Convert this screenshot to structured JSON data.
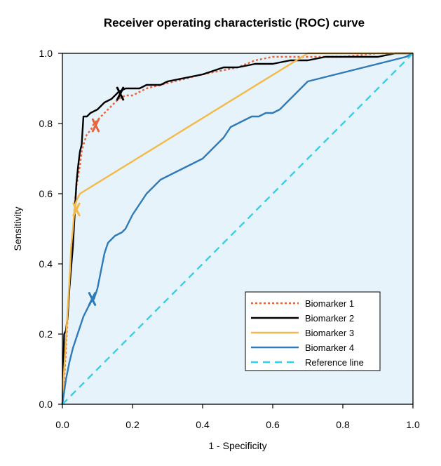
{
  "chart_data": {
    "type": "line",
    "title": "Receiver operating characteristic (ROC) curve",
    "xlabel": "1 - Specificity",
    "ylabel": "Sensitivity",
    "xlim": [
      0,
      1
    ],
    "ylim": [
      0,
      1
    ],
    "xticks": [
      "0.0",
      "0.2",
      "0.4",
      "0.6",
      "0.8",
      "1.0"
    ],
    "yticks": [
      "0.0",
      "0.2",
      "0.4",
      "0.6",
      "0.8",
      "1.0"
    ],
    "grid": false,
    "legend_position": "bottom-right",
    "plot_background": "#e6f3fa",
    "series": [
      {
        "name": "Biomarker 1",
        "color": "#e8643c",
        "style": "dotted",
        "x": [
          0,
          0.005,
          0.01,
          0.015,
          0.02,
          0.025,
          0.03,
          0.035,
          0.04,
          0.05,
          0.055,
          0.06,
          0.07,
          0.08,
          0.09,
          0.1,
          0.12,
          0.14,
          0.16,
          0.18,
          0.2,
          0.24,
          0.28,
          0.32,
          0.36,
          0.4,
          0.45,
          0.5,
          0.55,
          0.6,
          0.65,
          0.7,
          0.8,
          0.9,
          1.0
        ],
        "y": [
          0,
          0.07,
          0.15,
          0.25,
          0.33,
          0.4,
          0.48,
          0.57,
          0.62,
          0.68,
          0.72,
          0.74,
          0.77,
          0.78,
          0.8,
          0.81,
          0.83,
          0.85,
          0.87,
          0.88,
          0.88,
          0.9,
          0.91,
          0.92,
          0.93,
          0.94,
          0.95,
          0.96,
          0.98,
          0.99,
          0.99,
          0.99,
          0.99,
          1.0,
          1.0
        ]
      },
      {
        "name": "Biomarker 2",
        "color": "#000000",
        "style": "solid",
        "x": [
          0,
          0.005,
          0.01,
          0.015,
          0.02,
          0.025,
          0.03,
          0.04,
          0.045,
          0.05,
          0.055,
          0.06,
          0.07,
          0.08,
          0.1,
          0.12,
          0.14,
          0.16,
          0.18,
          0.2,
          0.22,
          0.24,
          0.26,
          0.28,
          0.3,
          0.35,
          0.4,
          0.46,
          0.5,
          0.55,
          0.6,
          0.65,
          0.7,
          0.75,
          0.8,
          0.85,
          0.9,
          0.95,
          1.0
        ],
        "y": [
          0,
          0.2,
          0.21,
          0.25,
          0.33,
          0.39,
          0.45,
          0.63,
          0.68,
          0.72,
          0.74,
          0.82,
          0.82,
          0.83,
          0.84,
          0.86,
          0.87,
          0.89,
          0.9,
          0.9,
          0.9,
          0.91,
          0.91,
          0.91,
          0.92,
          0.93,
          0.94,
          0.96,
          0.96,
          0.97,
          0.97,
          0.98,
          0.98,
          0.99,
          0.99,
          0.99,
          0.99,
          1.0,
          1.0
        ]
      },
      {
        "name": "Biomarker 3",
        "color": "#f5b94a",
        "style": "solid",
        "x": [
          0,
          0.005,
          0.01,
          0.015,
          0.02,
          0.025,
          0.03,
          0.035,
          0.04,
          0.05,
          0.7,
          1.0
        ],
        "y": [
          0,
          0.1,
          0.18,
          0.27,
          0.35,
          0.45,
          0.5,
          0.56,
          0.58,
          0.6,
          1.0,
          1.0
        ]
      },
      {
        "name": "Biomarker 4",
        "color": "#2f7ab8",
        "style": "solid",
        "x": [
          0,
          0.01,
          0.02,
          0.03,
          0.04,
          0.05,
          0.06,
          0.07,
          0.08,
          0.09,
          0.1,
          0.11,
          0.12,
          0.13,
          0.14,
          0.15,
          0.16,
          0.17,
          0.18,
          0.2,
          0.22,
          0.24,
          0.26,
          0.28,
          0.3,
          0.32,
          0.34,
          0.36,
          0.38,
          0.4,
          0.42,
          0.44,
          0.46,
          0.48,
          0.5,
          0.52,
          0.54,
          0.56,
          0.58,
          0.6,
          0.62,
          0.64,
          0.66,
          0.68,
          0.7,
          0.72,
          0.74,
          0.76,
          0.78,
          0.8,
          0.82,
          0.84,
          0.86,
          0.88,
          0.9,
          0.92,
          0.94,
          0.96,
          0.98,
          1.0
        ],
        "y": [
          0,
          0.07,
          0.12,
          0.16,
          0.19,
          0.22,
          0.25,
          0.27,
          0.29,
          0.3,
          0.33,
          0.38,
          0.43,
          0.46,
          0.47,
          0.48,
          0.485,
          0.49,
          0.5,
          0.54,
          0.57,
          0.6,
          0.62,
          0.64,
          0.65,
          0.66,
          0.67,
          0.68,
          0.69,
          0.7,
          0.72,
          0.74,
          0.76,
          0.79,
          0.8,
          0.81,
          0.82,
          0.82,
          0.83,
          0.83,
          0.84,
          0.86,
          0.88,
          0.9,
          0.92,
          0.925,
          0.93,
          0.935,
          0.94,
          0.945,
          0.95,
          0.955,
          0.96,
          0.965,
          0.97,
          0.975,
          0.98,
          0.985,
          0.99,
          1.0
        ]
      },
      {
        "name": "Reference line",
        "color": "#2ad4ee",
        "style": "dashed",
        "x": [
          0,
          1
        ],
        "y": [
          0,
          1
        ]
      }
    ],
    "markers": [
      {
        "series": "Biomarker 1",
        "x": 0.095,
        "y": 0.795,
        "color": "#e8643c"
      },
      {
        "series": "Biomarker 2",
        "x": 0.165,
        "y": 0.885,
        "color": "#000000"
      },
      {
        "series": "Biomarker 3",
        "x": 0.04,
        "y": 0.555,
        "color": "#f5b94a"
      },
      {
        "series": "Biomarker 4",
        "x": 0.085,
        "y": 0.3,
        "color": "#2f7ab8"
      }
    ]
  }
}
